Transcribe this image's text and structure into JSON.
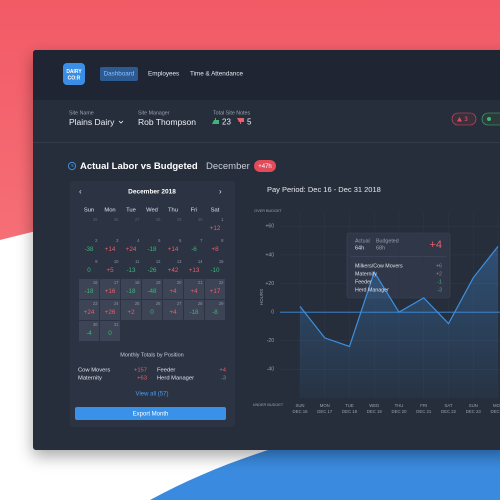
{
  "header": {
    "logo": [
      "DAIRY",
      "CO:R"
    ],
    "nav": [
      "Dashboard",
      "Employees",
      "Time & Attendance"
    ]
  },
  "site": {
    "name_label": "Site Name",
    "name": "Plains Dairy",
    "manager_label": "Site Manager",
    "manager": "Rob Thompson",
    "notes_label": "Total Site Notes",
    "likes": 23,
    "dislikes": 5,
    "alerts": 3
  },
  "section": {
    "title": "Actual Labor vs Budgeted",
    "month": "December",
    "delta": "+47h"
  },
  "calendar": {
    "title": "December 2018",
    "weekdays": [
      "Sun",
      "Mon",
      "Tue",
      "Wed",
      "Thu",
      "Fri",
      "Sat"
    ],
    "weeks": [
      [
        {
          "day": 25
        },
        {
          "day": 26
        },
        {
          "day": 27
        },
        {
          "day": 28
        },
        {
          "day": 29
        },
        {
          "day": 30
        },
        {
          "day": 1,
          "value": "+12"
        }
      ],
      [
        {
          "day": 2,
          "value": "-38"
        },
        {
          "day": 3,
          "value": "+14"
        },
        {
          "day": 4,
          "value": "+24"
        },
        {
          "day": 5,
          "value": "-18"
        },
        {
          "day": 6,
          "value": "+14"
        },
        {
          "day": 7,
          "value": "-6"
        },
        {
          "day": 8,
          "value": "+8"
        }
      ],
      [
        {
          "day": 9,
          "value": "0"
        },
        {
          "day": 10,
          "value": "+5"
        },
        {
          "day": 11,
          "value": "-13"
        },
        {
          "day": 12,
          "value": "-26"
        },
        {
          "day": 13,
          "value": "+42"
        },
        {
          "day": 14,
          "value": "+13"
        },
        {
          "day": 15,
          "value": "-10"
        }
      ],
      [
        {
          "day": 16,
          "value": "-18"
        },
        {
          "day": 17,
          "value": "+16"
        },
        {
          "day": 18,
          "value": "-18"
        },
        {
          "day": 19,
          "value": "-48"
        },
        {
          "day": 20,
          "value": "+4"
        },
        {
          "day": 21,
          "value": "+4"
        },
        {
          "day": 22,
          "value": "+17"
        }
      ],
      [
        {
          "day": 23,
          "value": "+24"
        },
        {
          "day": 24,
          "value": "+26"
        },
        {
          "day": 25,
          "value": "+2"
        },
        {
          "day": 26,
          "value": "0"
        },
        {
          "day": 27,
          "value": "+4"
        },
        {
          "day": 28,
          "value": "-18"
        },
        {
          "day": 29,
          "value": "-8"
        }
      ],
      [
        {
          "day": 30,
          "value": "-4"
        },
        {
          "day": 31,
          "value": "0"
        }
      ]
    ],
    "totals_title": "Monthly Totals by Position",
    "totals": [
      {
        "name": "Cow Movers",
        "value": "+157"
      },
      {
        "name": "Feeder",
        "value": "+4"
      },
      {
        "name": "Maternity",
        "value": "+63"
      },
      {
        "name": "Herd Manager",
        "value": "-3"
      }
    ],
    "view_all": "View all (57)",
    "export": "Export Month"
  },
  "tooltip": {
    "actual_label": "Actual",
    "actual": "64h",
    "budgeted_label": "Budgeted",
    "budgeted": "68h",
    "delta": "+4",
    "rows": [
      {
        "name": "Milkers/Cow Movers",
        "value": "+6"
      },
      {
        "name": "Maternity",
        "value": "+2"
      },
      {
        "name": "Feeder",
        "value": "-1"
      },
      {
        "name": "Herd Manager",
        "value": "-3"
      }
    ]
  },
  "chart_data": {
    "type": "line",
    "title": "Pay Period: Dec 16 - Dec 31 2018",
    "y_label": "HOURS",
    "y_top_label": "OVER BUDGET",
    "y_bottom_label": "UNDER BUDGET",
    "categories": [
      "SUN",
      "MON",
      "TUE",
      "WED",
      "THU",
      "FRI",
      "SAT",
      "SUN",
      "MON"
    ],
    "dates": [
      "DEC 16",
      "DEC 17",
      "DEC 18",
      "DEC 19",
      "DEC 20",
      "DEC 21",
      "DEC 22",
      "DEC 23",
      "DEC 24"
    ],
    "values": [
      4,
      -18,
      -24,
      28,
      0,
      10,
      -8,
      24,
      46
    ],
    "color": "#3d8fe0",
    "ylim": [
      -60,
      70
    ],
    "yticks": [
      {
        "value": 60,
        "label": "+60"
      },
      {
        "value": 40,
        "label": "+40"
      },
      {
        "value": 20,
        "label": "+20"
      },
      0,
      -20,
      -40
    ],
    "grid": true
  }
}
